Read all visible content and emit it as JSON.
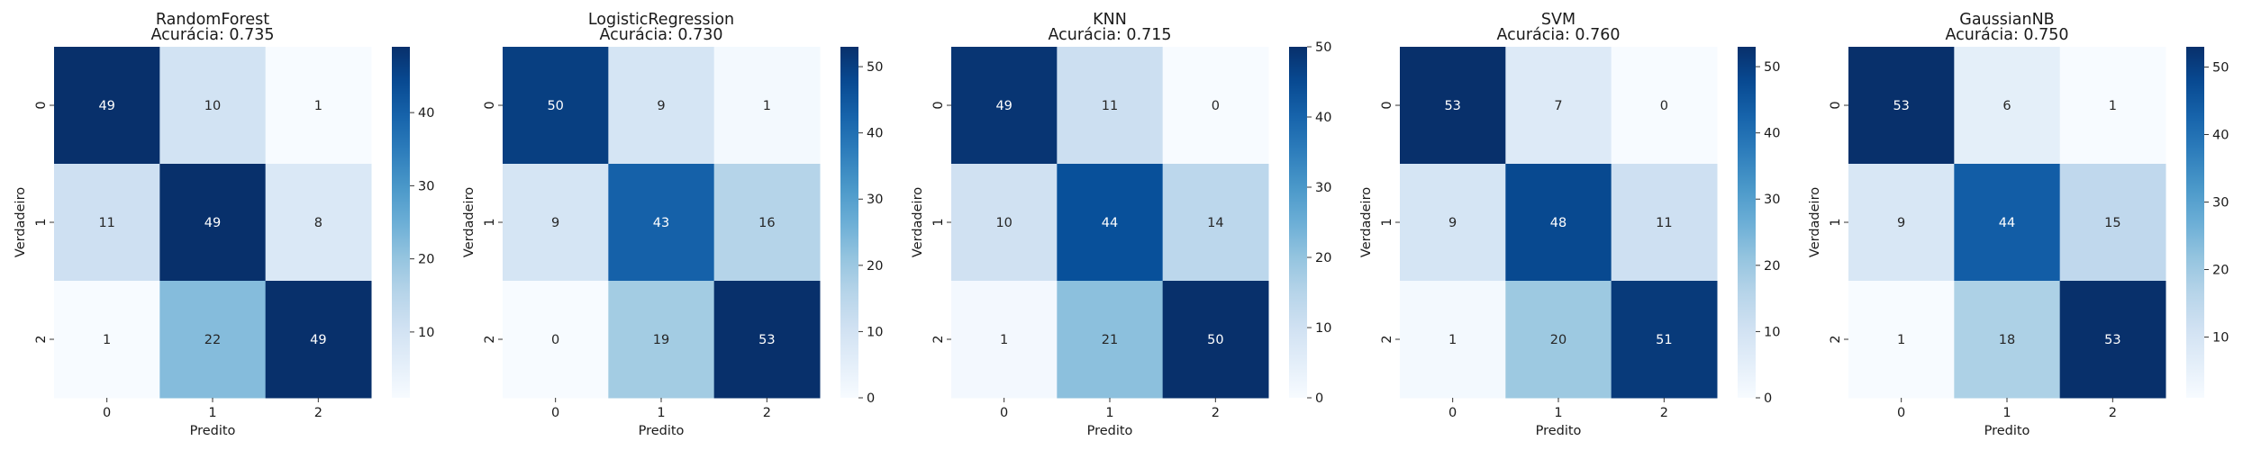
{
  "chart_data": [
    {
      "type": "heatmap",
      "title": "RandomForest",
      "subtitle": "Acurácia: 0.735",
      "xlabel": "Predito",
      "ylabel": "Verdadeiro",
      "x_categories": [
        "0",
        "1",
        "2"
      ],
      "y_categories": [
        "0",
        "1",
        "2"
      ],
      "values": [
        [
          49,
          10,
          1
        ],
        [
          11,
          49,
          8
        ],
        [
          1,
          22,
          49
        ]
      ],
      "color_range": [
        1,
        49
      ],
      "colorbar_ticks": [
        10,
        20,
        30,
        40
      ]
    },
    {
      "type": "heatmap",
      "title": "LogisticRegression",
      "subtitle": "Acurácia: 0.730",
      "xlabel": "Predito",
      "ylabel": "Verdadeiro",
      "x_categories": [
        "0",
        "1",
        "2"
      ],
      "y_categories": [
        "0",
        "1",
        "2"
      ],
      "values": [
        [
          50,
          9,
          1
        ],
        [
          9,
          43,
          16
        ],
        [
          0,
          19,
          53
        ]
      ],
      "color_range": [
        0,
        53
      ],
      "colorbar_ticks": [
        0,
        10,
        20,
        30,
        40,
        50
      ]
    },
    {
      "type": "heatmap",
      "title": "KNN",
      "subtitle": "Acurácia: 0.715",
      "xlabel": "Predito",
      "ylabel": "Verdadeiro",
      "x_categories": [
        "0",
        "1",
        "2"
      ],
      "y_categories": [
        "0",
        "1",
        "2"
      ],
      "values": [
        [
          49,
          11,
          0
        ],
        [
          10,
          44,
          14
        ],
        [
          1,
          21,
          50
        ]
      ],
      "color_range": [
        0,
        50
      ],
      "colorbar_ticks": [
        0,
        10,
        20,
        30,
        40,
        50
      ]
    },
    {
      "type": "heatmap",
      "title": "SVM",
      "subtitle": "Acurácia: 0.760",
      "xlabel": "Predito",
      "ylabel": "Verdadeiro",
      "x_categories": [
        "0",
        "1",
        "2"
      ],
      "y_categories": [
        "0",
        "1",
        "2"
      ],
      "values": [
        [
          53,
          7,
          0
        ],
        [
          9,
          48,
          11
        ],
        [
          1,
          20,
          51
        ]
      ],
      "color_range": [
        0,
        53
      ],
      "colorbar_ticks": [
        0,
        10,
        20,
        30,
        40,
        50
      ]
    },
    {
      "type": "heatmap",
      "title": "GaussianNB",
      "subtitle": "Acurácia: 0.750",
      "xlabel": "Predito",
      "ylabel": "Verdadeiro",
      "x_categories": [
        "0",
        "1",
        "2"
      ],
      "y_categories": [
        "0",
        "1",
        "2"
      ],
      "values": [
        [
          53,
          6,
          1
        ],
        [
          9,
          44,
          15
        ],
        [
          1,
          18,
          53
        ]
      ],
      "color_range": [
        1,
        53
      ],
      "colorbar_ticks": [
        10,
        20,
        30,
        40,
        50
      ]
    }
  ],
  "colormap": "Blues"
}
